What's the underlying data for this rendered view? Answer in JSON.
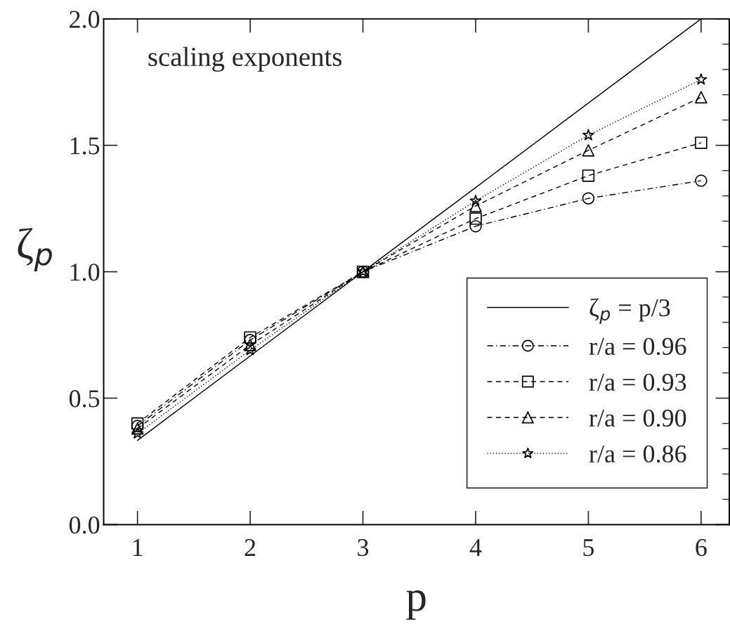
{
  "chart_data": {
    "type": "line",
    "xlabel": "p",
    "ylabel": "ζ$_{p}$",
    "annotations": [
      "scaling exponents"
    ],
    "x": [
      1,
      2,
      3,
      4,
      5,
      6
    ],
    "series": [
      {
        "name": "ζ$_{p}$ = p/3",
        "color": "#000000",
        "values": [
          0.333,
          0.667,
          1.0,
          1.333,
          1.667,
          2.0
        ],
        "marker": "none",
        "line_style": "solid"
      },
      {
        "name": "r/a = 0.96",
        "color": "#000000",
        "values": [
          0.39,
          0.73,
          1.0,
          1.18,
          1.29,
          1.36
        ],
        "marker": "circle",
        "line_style": "dashdot"
      },
      {
        "name": "r/a = 0.93",
        "color": "#000000",
        "values": [
          0.4,
          0.74,
          1.0,
          1.21,
          1.38,
          1.51
        ],
        "marker": "square",
        "line_style": "dashed"
      },
      {
        "name": "r/a = 0.90",
        "color": "#000000",
        "values": [
          0.38,
          0.71,
          1.0,
          1.26,
          1.48,
          1.69
        ],
        "marker": "triangle",
        "line_style": "dashed"
      },
      {
        "name": "r/a = 0.86",
        "color": "#000000",
        "values": [
          0.36,
          0.69,
          1.0,
          1.28,
          1.54,
          1.76
        ],
        "marker": "star",
        "line_style": "dotted"
      }
    ],
    "xlim": [
      0.7,
      6.25
    ],
    "ylim": [
      0.0,
      2.0
    ],
    "xticks": [
      1,
      2,
      3,
      4,
      5,
      6
    ],
    "yticks": [
      {
        "value": 0.0,
        "label": "0.0"
      },
      {
        "value": 0.5,
        "label": "0.5"
      },
      {
        "value": 1.0,
        "label": "1.0"
      },
      {
        "value": 1.5,
        "label": "1.5"
      },
      {
        "value": 2.0,
        "label": "2.0"
      }
    ],
    "grid": false,
    "legend": "right"
  }
}
